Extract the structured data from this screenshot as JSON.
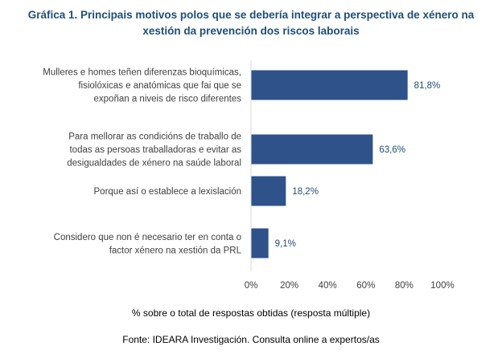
{
  "chart_data": {
    "type": "bar",
    "orientation": "horizontal",
    "title": [
      "Gráfica 1. Principais motivos polos que se debería integrar a perspectiva de xénero na",
      "xestión da prevención dos riscos laborais"
    ],
    "categories": [
      [
        "Mulleres e homes teñen diferenzas bioquímicas,",
        "fisiolóxicas e anatómicas que fai que se",
        "expoñan a niveis de risco diferentes"
      ],
      [
        "Para mellorar as condicións de traballo de",
        "todas as persoas traballadoras e evitar as",
        "desigualdades de xénero na saúde laboral"
      ],
      [
        "Porque así o establece a lexislación"
      ],
      [
        "Considero que non é necesario ter en conta o",
        "factor xénero na xestión da PRL"
      ]
    ],
    "values": [
      81.8,
      63.6,
      18.2,
      9.1
    ],
    "value_labels": [
      "81,8%",
      "63,6%",
      "18,2%",
      "9,1%"
    ],
    "xlim": [
      0,
      100
    ],
    "xticks": [
      0,
      20,
      40,
      60,
      80,
      100
    ],
    "xtick_labels": [
      "0%",
      "20%",
      "40%",
      "60%",
      "80%",
      "100%"
    ],
    "xlabel": "% sobre o total de respostas obtidas (resposta múltiple)",
    "source": "Fonte: IDEARA Investigación. Consulta online a expertos/as",
    "grid": false,
    "legend": false,
    "bar_color": "#2e5289",
    "value_label_color": "#1f4e79",
    "title_color": "#1f4e79"
  }
}
